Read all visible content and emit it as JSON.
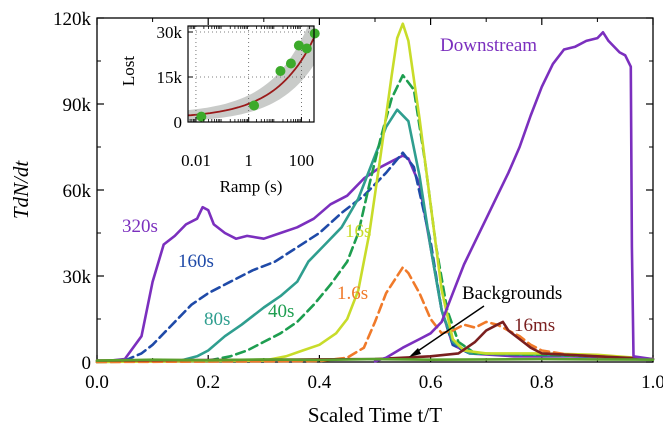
{
  "chart_data": [
    {
      "type": "line",
      "ylabel": "TdN/dt",
      "xlabel": "Scaled Time t/T",
      "xlim": [
        0.0,
        1.0
      ],
      "ylim": [
        0,
        120000
      ],
      "x_ticks": [
        "0.0",
        "0.2",
        "0.4",
        "0.6",
        "0.8",
        "1.0"
      ],
      "y_ticks": [
        "0",
        "30k",
        "60k",
        "90k",
        "120k"
      ],
      "grid": false,
      "series": [
        {
          "name": "320s",
          "color": "#7b2fbe",
          "dash": "solid",
          "points": [
            [
              0.0,
              0
            ],
            [
              0.05,
              1000
            ],
            [
              0.08,
              9000
            ],
            [
              0.1,
              28000
            ],
            [
              0.12,
              41000
            ],
            [
              0.14,
              44000
            ],
            [
              0.16,
              48000
            ],
            [
              0.18,
              50000
            ],
            [
              0.19,
              54000
            ],
            [
              0.2,
              53000
            ],
            [
              0.21,
              48000
            ],
            [
              0.23,
              45000
            ],
            [
              0.25,
              43000
            ],
            [
              0.27,
              44000
            ],
            [
              0.3,
              43000
            ],
            [
              0.33,
              45000
            ],
            [
              0.36,
              47000
            ],
            [
              0.39,
              50000
            ],
            [
              0.42,
              55000
            ],
            [
              0.45,
              58000
            ],
            [
              0.48,
              64000
            ],
            [
              0.51,
              68000
            ],
            [
              0.53,
              70000
            ],
            [
              0.55,
              72000
            ],
            [
              0.56,
              71000
            ],
            [
              0.58,
              62000
            ],
            [
              0.6,
              40000
            ],
            [
              0.62,
              18000
            ],
            [
              0.64,
              6000
            ],
            [
              0.67,
              3000
            ],
            [
              0.75,
              2000
            ],
            [
              0.85,
              2000
            ],
            [
              0.95,
              1500
            ],
            [
              1.0,
              1000
            ]
          ]
        },
        {
          "name": "160s",
          "color": "#1f4aa8",
          "dash": "dashed",
          "points": [
            [
              0.0,
              0
            ],
            [
              0.05,
              500
            ],
            [
              0.08,
              3000
            ],
            [
              0.1,
              6000
            ],
            [
              0.13,
              12000
            ],
            [
              0.17,
              20000
            ],
            [
              0.2,
              24000
            ],
            [
              0.24,
              28000
            ],
            [
              0.28,
              32000
            ],
            [
              0.32,
              35000
            ],
            [
              0.36,
              40000
            ],
            [
              0.4,
              45000
            ],
            [
              0.44,
              52000
            ],
            [
              0.48,
              58000
            ],
            [
              0.52,
              66000
            ],
            [
              0.55,
              73000
            ],
            [
              0.57,
              68000
            ],
            [
              0.6,
              42000
            ],
            [
              0.62,
              18000
            ],
            [
              0.64,
              6000
            ],
            [
              0.67,
              3000
            ],
            [
              0.8,
              2500
            ],
            [
              0.9,
              2000
            ],
            [
              1.0,
              1000
            ]
          ]
        },
        {
          "name": "80s",
          "color": "#2f9e8f",
          "dash": "solid",
          "points": [
            [
              0.0,
              0
            ],
            [
              0.15,
              500
            ],
            [
              0.18,
              2000
            ],
            [
              0.2,
              4000
            ],
            [
              0.23,
              9000
            ],
            [
              0.26,
              13000
            ],
            [
              0.3,
              19000
            ],
            [
              0.33,
              23000
            ],
            [
              0.36,
              28000
            ],
            [
              0.38,
              35000
            ],
            [
              0.41,
              41000
            ],
            [
              0.44,
              47000
            ],
            [
              0.47,
              57000
            ],
            [
              0.5,
              72000
            ],
            [
              0.52,
              82000
            ],
            [
              0.54,
              88000
            ],
            [
              0.56,
              84000
            ],
            [
              0.58,
              65000
            ],
            [
              0.6,
              40000
            ],
            [
              0.62,
              18000
            ],
            [
              0.64,
              7000
            ],
            [
              0.67,
              3000
            ],
            [
              0.8,
              2500
            ],
            [
              0.9,
              2000
            ],
            [
              1.0,
              1000
            ]
          ]
        },
        {
          "name": "40s",
          "color": "#1e9e50",
          "dash": "dashed",
          "points": [
            [
              0.0,
              0
            ],
            [
              0.2,
              500
            ],
            [
              0.24,
              2000
            ],
            [
              0.27,
              4000
            ],
            [
              0.3,
              7000
            ],
            [
              0.33,
              10000
            ],
            [
              0.36,
              14000
            ],
            [
              0.39,
              20000
            ],
            [
              0.42,
              27000
            ],
            [
              0.45,
              35000
            ],
            [
              0.47,
              45000
            ],
            [
              0.49,
              62000
            ],
            [
              0.51,
              78000
            ],
            [
              0.53,
              92000
            ],
            [
              0.55,
              100000
            ],
            [
              0.57,
              95000
            ],
            [
              0.59,
              70000
            ],
            [
              0.61,
              40000
            ],
            [
              0.63,
              18000
            ],
            [
              0.65,
              7000
            ],
            [
              0.68,
              3000
            ],
            [
              0.8,
              2500
            ],
            [
              0.9,
              2000
            ],
            [
              1.0,
              1000
            ]
          ]
        },
        {
          "name": "16s",
          "color": "#c8dc2a",
          "dash": "solid",
          "points": [
            [
              0.0,
              0
            ],
            [
              0.3,
              500
            ],
            [
              0.34,
              2000
            ],
            [
              0.37,
              4000
            ],
            [
              0.4,
              6000
            ],
            [
              0.43,
              10000
            ],
            [
              0.45,
              15000
            ],
            [
              0.47,
              25000
            ],
            [
              0.49,
              45000
            ],
            [
              0.51,
              72000
            ],
            [
              0.53,
              100000
            ],
            [
              0.54,
              113000
            ],
            [
              0.55,
              118000
            ],
            [
              0.56,
              112000
            ],
            [
              0.58,
              85000
            ],
            [
              0.6,
              55000
            ],
            [
              0.62,
              25000
            ],
            [
              0.64,
              8000
            ],
            [
              0.66,
              4000
            ],
            [
              0.7,
              3000
            ],
            [
              0.8,
              3000
            ],
            [
              0.9,
              2500
            ],
            [
              1.0,
              1000
            ]
          ]
        },
        {
          "name": "1.6s",
          "color": "#f07a2a",
          "dash": "dashed",
          "points": [
            [
              0.0,
              0
            ],
            [
              0.4,
              300
            ],
            [
              0.45,
              1500
            ],
            [
              0.48,
              5000
            ],
            [
              0.5,
              14000
            ],
            [
              0.52,
              24000
            ],
            [
              0.54,
              30000
            ],
            [
              0.55,
              33000
            ],
            [
              0.56,
              31000
            ],
            [
              0.58,
              24000
            ],
            [
              0.6,
              15000
            ],
            [
              0.62,
              10000
            ],
            [
              0.64,
              11000
            ],
            [
              0.66,
              13000
            ],
            [
              0.68,
              12000
            ],
            [
              0.7,
              14000
            ],
            [
              0.72,
              13000
            ],
            [
              0.74,
              11000
            ],
            [
              0.76,
              9000
            ],
            [
              0.78,
              6000
            ],
            [
              0.8,
              4000
            ],
            [
              0.85,
              2500
            ],
            [
              0.9,
              2000
            ],
            [
              1.0,
              1000
            ]
          ]
        },
        {
          "name": "16ms",
          "color": "#7a1f1f",
          "dash": "solid",
          "points": [
            [
              0.0,
              500
            ],
            [
              0.5,
              1000
            ],
            [
              0.6,
              2000
            ],
            [
              0.65,
              3000
            ],
            [
              0.68,
              7000
            ],
            [
              0.7,
              11000
            ],
            [
              0.72,
              13000
            ],
            [
              0.73,
              14000
            ],
            [
              0.74,
              11000
            ],
            [
              0.76,
              8000
            ],
            [
              0.78,
              5000
            ],
            [
              0.8,
              3000
            ],
            [
              0.9,
              2000
            ],
            [
              1.0,
              1000
            ]
          ]
        },
        {
          "name": "Downstream",
          "color": "#7b2fbe",
          "dash": "solid",
          "points": [
            [
              0.5,
              200
            ],
            [
              0.52,
              1500
            ],
            [
              0.55,
              5000
            ],
            [
              0.58,
              8000
            ],
            [
              0.6,
              10000
            ],
            [
              0.62,
              14000
            ],
            [
              0.64,
              24000
            ],
            [
              0.66,
              34000
            ],
            [
              0.68,
              42000
            ],
            [
              0.7,
              50000
            ],
            [
              0.72,
              58000
            ],
            [
              0.74,
              66000
            ],
            [
              0.76,
              75000
            ],
            [
              0.78,
              86000
            ],
            [
              0.8,
              96000
            ],
            [
              0.82,
              104000
            ],
            [
              0.84,
              109000
            ],
            [
              0.86,
              110000
            ],
            [
              0.88,
              112000
            ],
            [
              0.9,
              113000
            ],
            [
              0.91,
              115000
            ],
            [
              0.92,
              112000
            ],
            [
              0.94,
              108000
            ],
            [
              0.95,
              107000
            ],
            [
              0.96,
              103000
            ],
            [
              0.962,
              40000
            ],
            [
              0.965,
              2000
            ],
            [
              1.0,
              1000
            ]
          ]
        },
        {
          "name": "Backgrounds",
          "color": "#5aa02c",
          "dash": "solid",
          "points": [
            [
              0.0,
              500
            ],
            [
              0.1,
              800
            ],
            [
              0.2,
              600
            ],
            [
              0.3,
              900
            ],
            [
              0.4,
              700
            ],
            [
              0.5,
              1000
            ],
            [
              0.6,
              800
            ],
            [
              0.7,
              900
            ],
            [
              0.8,
              1000
            ],
            [
              0.9,
              900
            ],
            [
              1.0,
              800
            ]
          ]
        }
      ],
      "annotations": [
        {
          "text": "Downstream",
          "color": "#7b2fbe"
        },
        {
          "text": "320s",
          "color": "#7b2fbe"
        },
        {
          "text": "160s",
          "color": "#1f4aa8"
        },
        {
          "text": "80s",
          "color": "#2f9e8f"
        },
        {
          "text": "40s",
          "color": "#1e9e50"
        },
        {
          "text": "16s",
          "color": "#c8dc2a"
        },
        {
          "text": "1.6s",
          "color": "#f07a2a"
        },
        {
          "text": "16ms",
          "color": "#7a1f1f"
        },
        {
          "text": "Backgrounds",
          "color": "#000000"
        }
      ]
    },
    {
      "type": "scatter",
      "inset": true,
      "xlabel": "Ramp (s)",
      "ylabel": "Lost",
      "x_scale": "log",
      "xlim": [
        0.005,
        300
      ],
      "ylim": [
        0,
        32000
      ],
      "x_ticks": [
        "0.01",
        "1",
        "100"
      ],
      "y_ticks": [
        "0",
        "15k",
        "30k"
      ],
      "points": [
        [
          0.016,
          1800
        ],
        [
          1.6,
          5500
        ],
        [
          16,
          17000
        ],
        [
          40,
          19500
        ],
        [
          80,
          25500
        ],
        [
          160,
          24500
        ],
        [
          320,
          29500
        ]
      ],
      "point_color": "#3caa2a",
      "fit_color": "#9a1a1a",
      "band_color": "#c9cbc9"
    }
  ]
}
